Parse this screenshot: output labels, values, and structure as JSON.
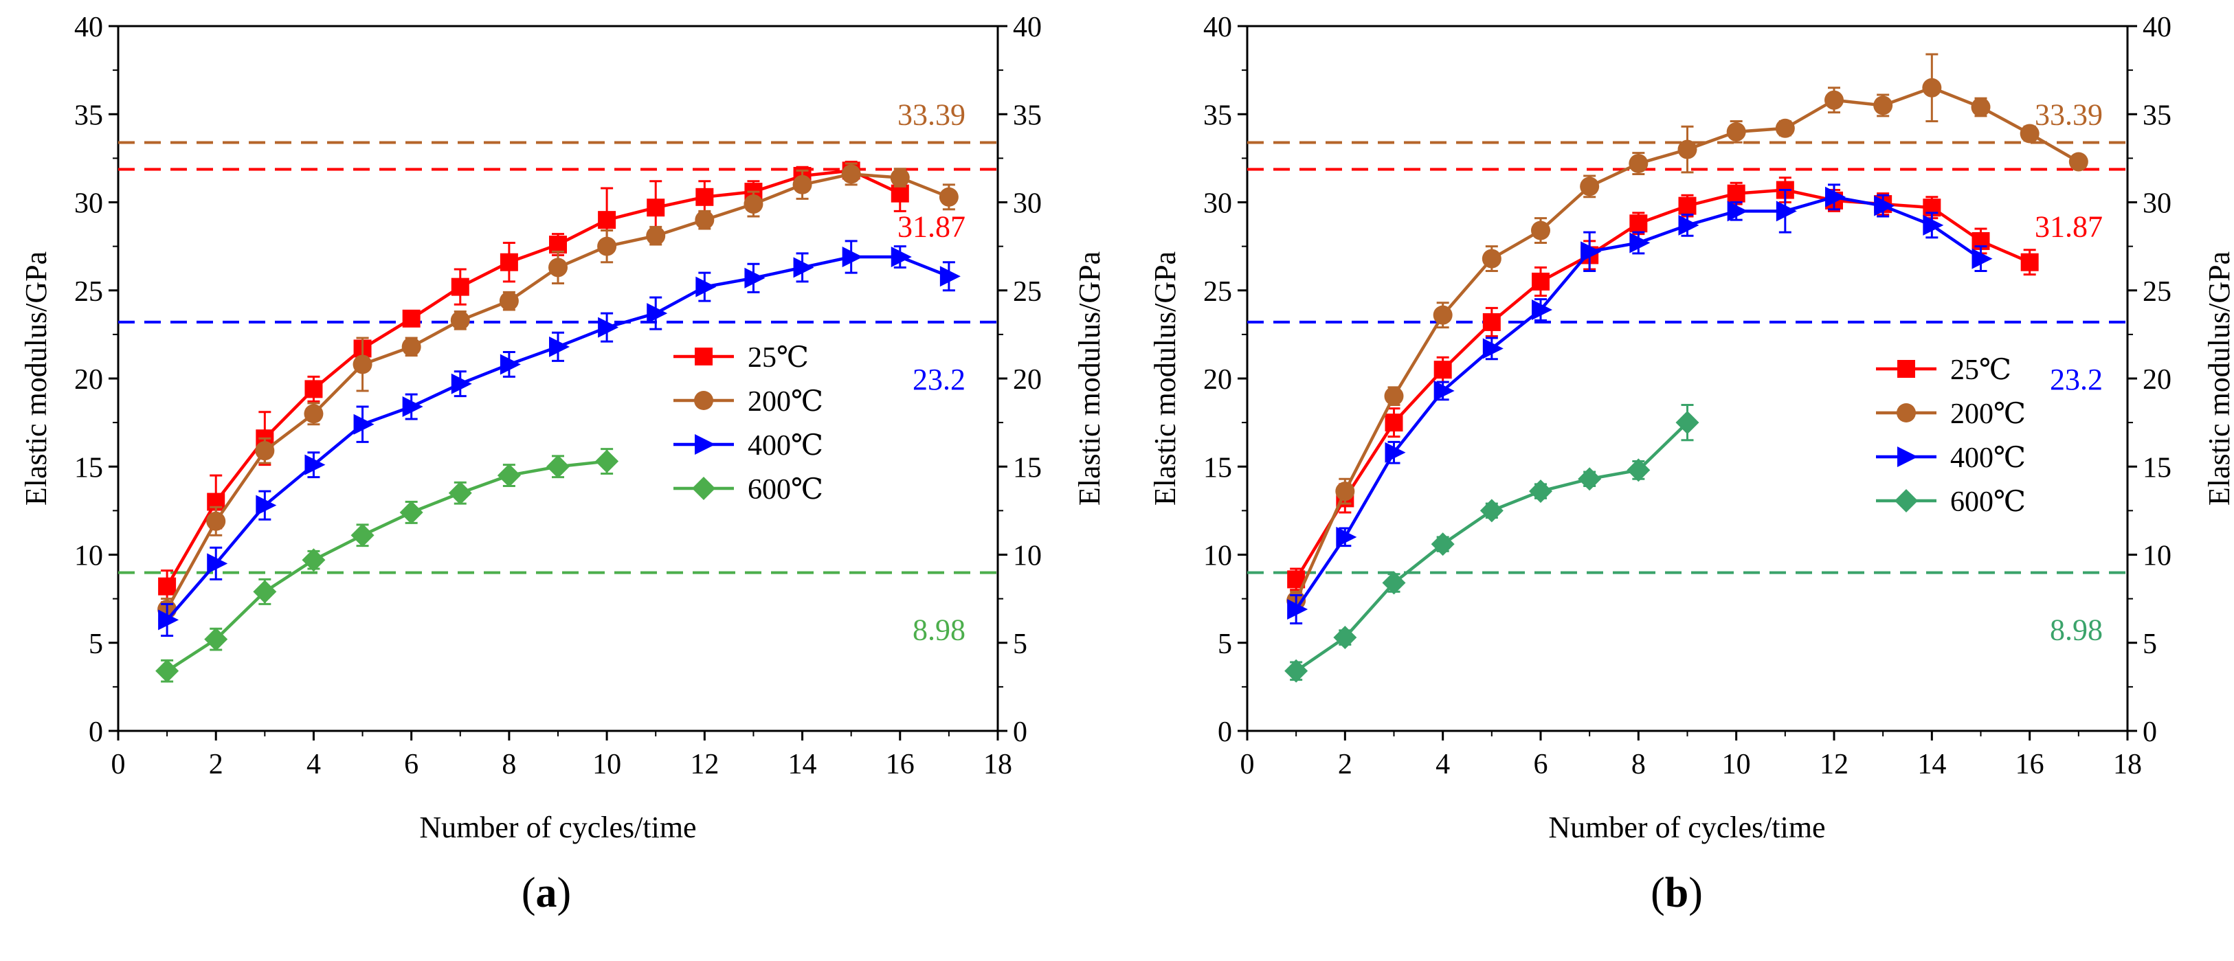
{
  "chart_data": [
    {
      "type": "line",
      "panel_label": "(a)",
      "panel_label_parts": [
        "(",
        "a",
        ")"
      ],
      "xlabel": "Number of cycles/time",
      "ylabel_left": "Elastic modulus/GPa",
      "ylabel_right": "Elastic modulus/GPa",
      "xlim": [
        0,
        18
      ],
      "ylim": [
        0,
        40
      ],
      "xticks": [
        0,
        2,
        4,
        6,
        8,
        10,
        12,
        14,
        16,
        18
      ],
      "yticks": [
        0,
        5,
        10,
        15,
        20,
        25,
        30,
        35,
        40
      ],
      "legend_position": "center-right",
      "series": [
        {
          "name": "25℃",
          "color": "#ff0000",
          "marker": "square",
          "x": [
            1,
            2,
            3,
            4,
            5,
            6,
            7,
            8,
            9,
            10,
            11,
            12,
            13,
            14,
            15,
            16
          ],
          "values": [
            8.2,
            13.0,
            16.6,
            19.4,
            21.7,
            23.4,
            25.2,
            26.6,
            27.6,
            29.0,
            29.7,
            30.3,
            30.6,
            31.5,
            31.8,
            30.5
          ],
          "errors": [
            0.9,
            1.5,
            1.5,
            0.7,
            0.6,
            0.4,
            1.0,
            1.1,
            0.6,
            1.8,
            1.5,
            0.9,
            0.6,
            0.5,
            0.5,
            1.0
          ]
        },
        {
          "name": "200℃",
          "color": "#b5652a",
          "marker": "circle",
          "x": [
            1,
            2,
            3,
            4,
            5,
            6,
            7,
            8,
            9,
            10,
            11,
            12,
            13,
            14,
            15,
            16,
            17
          ],
          "values": [
            6.9,
            11.9,
            15.9,
            18.0,
            20.8,
            21.8,
            23.3,
            24.4,
            26.3,
            27.5,
            28.1,
            29.0,
            29.9,
            31.0,
            31.6,
            31.4,
            30.3
          ],
          "errors": [
            0.6,
            0.8,
            0.7,
            0.6,
            1.5,
            0.5,
            0.5,
            0.5,
            0.9,
            0.9,
            0.5,
            0.5,
            0.7,
            0.8,
            0.6,
            0.5,
            0.7
          ]
        },
        {
          "name": "400℃",
          "color": "#0000ff",
          "marker": "triangle-right",
          "x": [
            1,
            2,
            3,
            4,
            5,
            6,
            7,
            8,
            9,
            10,
            11,
            12,
            13,
            14,
            15,
            16,
            17
          ],
          "values": [
            6.3,
            9.5,
            12.8,
            15.1,
            17.4,
            18.4,
            19.7,
            20.8,
            21.8,
            22.9,
            23.7,
            25.2,
            25.7,
            26.3,
            26.9,
            26.9,
            25.8
          ],
          "errors": [
            0.9,
            0.9,
            0.8,
            0.7,
            1.0,
            0.7,
            0.7,
            0.7,
            0.8,
            0.8,
            0.9,
            0.8,
            0.8,
            0.8,
            0.9,
            0.6,
            0.8
          ]
        },
        {
          "name": "600℃",
          "color": "#4cae4c",
          "marker": "diamond",
          "x": [
            1,
            2,
            3,
            4,
            5,
            6,
            7,
            8,
            9,
            10
          ],
          "values": [
            3.4,
            5.2,
            7.9,
            9.7,
            11.1,
            12.4,
            13.5,
            14.5,
            15.0,
            15.3
          ],
          "errors": [
            0.6,
            0.6,
            0.7,
            0.5,
            0.6,
            0.6,
            0.6,
            0.6,
            0.6,
            0.7
          ]
        }
      ],
      "reference_lines": [
        {
          "value": 33.39,
          "label": "33.39",
          "color": "#b5652a",
          "label_position": "above"
        },
        {
          "value": 31.87,
          "label": "31.87",
          "color": "#ff0000",
          "label_position": "below"
        },
        {
          "value": 23.2,
          "label": "23.2",
          "color": "#0000ff",
          "label_position": "below"
        },
        {
          "value": 8.98,
          "label": "8.98",
          "color": "#4cae4c",
          "label_position": "below"
        }
      ]
    },
    {
      "type": "line",
      "panel_label": "(b)",
      "panel_label_parts": [
        "(",
        "b",
        ")"
      ],
      "xlabel": "Number of cycles/time",
      "ylabel_left": "Elastic modulus/GPa",
      "ylabel_right": "Elastic modulus/GPa",
      "xlim": [
        0,
        18
      ],
      "ylim": [
        0,
        40
      ],
      "xticks": [
        0,
        2,
        4,
        6,
        8,
        10,
        12,
        14,
        16,
        18
      ],
      "yticks": [
        0,
        5,
        10,
        15,
        20,
        25,
        30,
        35,
        40
      ],
      "legend_position": "center-right",
      "series": [
        {
          "name": "25℃",
          "color": "#ff0000",
          "marker": "square",
          "x": [
            1,
            2,
            3,
            4,
            5,
            6,
            7,
            8,
            9,
            10,
            11,
            12,
            13,
            14,
            15,
            16
          ],
          "values": [
            8.6,
            13.2,
            17.5,
            20.5,
            23.2,
            25.5,
            27.0,
            28.8,
            29.8,
            30.5,
            30.7,
            30.1,
            29.9,
            29.7,
            27.8,
            26.6
          ],
          "errors": [
            0.6,
            0.8,
            0.8,
            0.7,
            0.8,
            0.8,
            0.8,
            0.6,
            0.6,
            0.6,
            0.7,
            0.6,
            0.6,
            0.6,
            0.7,
            0.7
          ]
        },
        {
          "name": "200℃",
          "color": "#b5652a",
          "marker": "circle",
          "x": [
            1,
            2,
            3,
            4,
            5,
            6,
            7,
            8,
            9,
            10,
            11,
            12,
            13,
            14,
            15,
            16,
            17
          ],
          "values": [
            7.4,
            13.6,
            19.0,
            23.6,
            26.8,
            28.4,
            30.9,
            32.2,
            33.0,
            34.0,
            34.2,
            35.8,
            35.5,
            36.5,
            35.4,
            33.9,
            32.3
          ],
          "errors": [
            0.5,
            0.7,
            0.5,
            0.7,
            0.7,
            0.7,
            0.6,
            0.6,
            1.3,
            0.6,
            0.4,
            0.7,
            0.6,
            1.9,
            0.5,
            0.4,
            0.3
          ]
        },
        {
          "name": "400℃",
          "color": "#0000ff",
          "marker": "triangle-right",
          "x": [
            1,
            2,
            3,
            4,
            5,
            6,
            7,
            8,
            9,
            10,
            11,
            12,
            13,
            14,
            15
          ],
          "values": [
            6.9,
            11.0,
            15.8,
            19.3,
            21.7,
            23.9,
            27.2,
            27.7,
            28.7,
            29.5,
            29.5,
            30.3,
            29.8,
            28.7,
            26.8
          ],
          "errors": [
            0.8,
            0.5,
            0.6,
            0.5,
            0.6,
            0.6,
            1.1,
            0.6,
            0.6,
            0.5,
            1.2,
            0.7,
            0.6,
            0.7,
            0.7
          ]
        },
        {
          "name": "600℃",
          "color": "#3aa36a",
          "marker": "diamond",
          "x": [
            1,
            2,
            3,
            4,
            5,
            6,
            7,
            8,
            9
          ],
          "values": [
            3.4,
            5.3,
            8.4,
            10.6,
            12.5,
            13.6,
            14.3,
            14.8,
            17.5
          ],
          "errors": [
            0.5,
            0.4,
            0.5,
            0.4,
            0.4,
            0.4,
            0.4,
            0.5,
            1.0
          ]
        }
      ],
      "reference_lines": [
        {
          "value": 33.39,
          "label": "33.39",
          "color": "#b5652a",
          "label_position": "above"
        },
        {
          "value": 31.87,
          "label": "31.87",
          "color": "#ff0000",
          "label_position": "below"
        },
        {
          "value": 23.2,
          "label": "23.2",
          "color": "#0000ff",
          "label_position": "below"
        },
        {
          "value": 8.98,
          "label": "8.98",
          "color": "#3aa36a",
          "label_position": "below"
        }
      ]
    }
  ]
}
